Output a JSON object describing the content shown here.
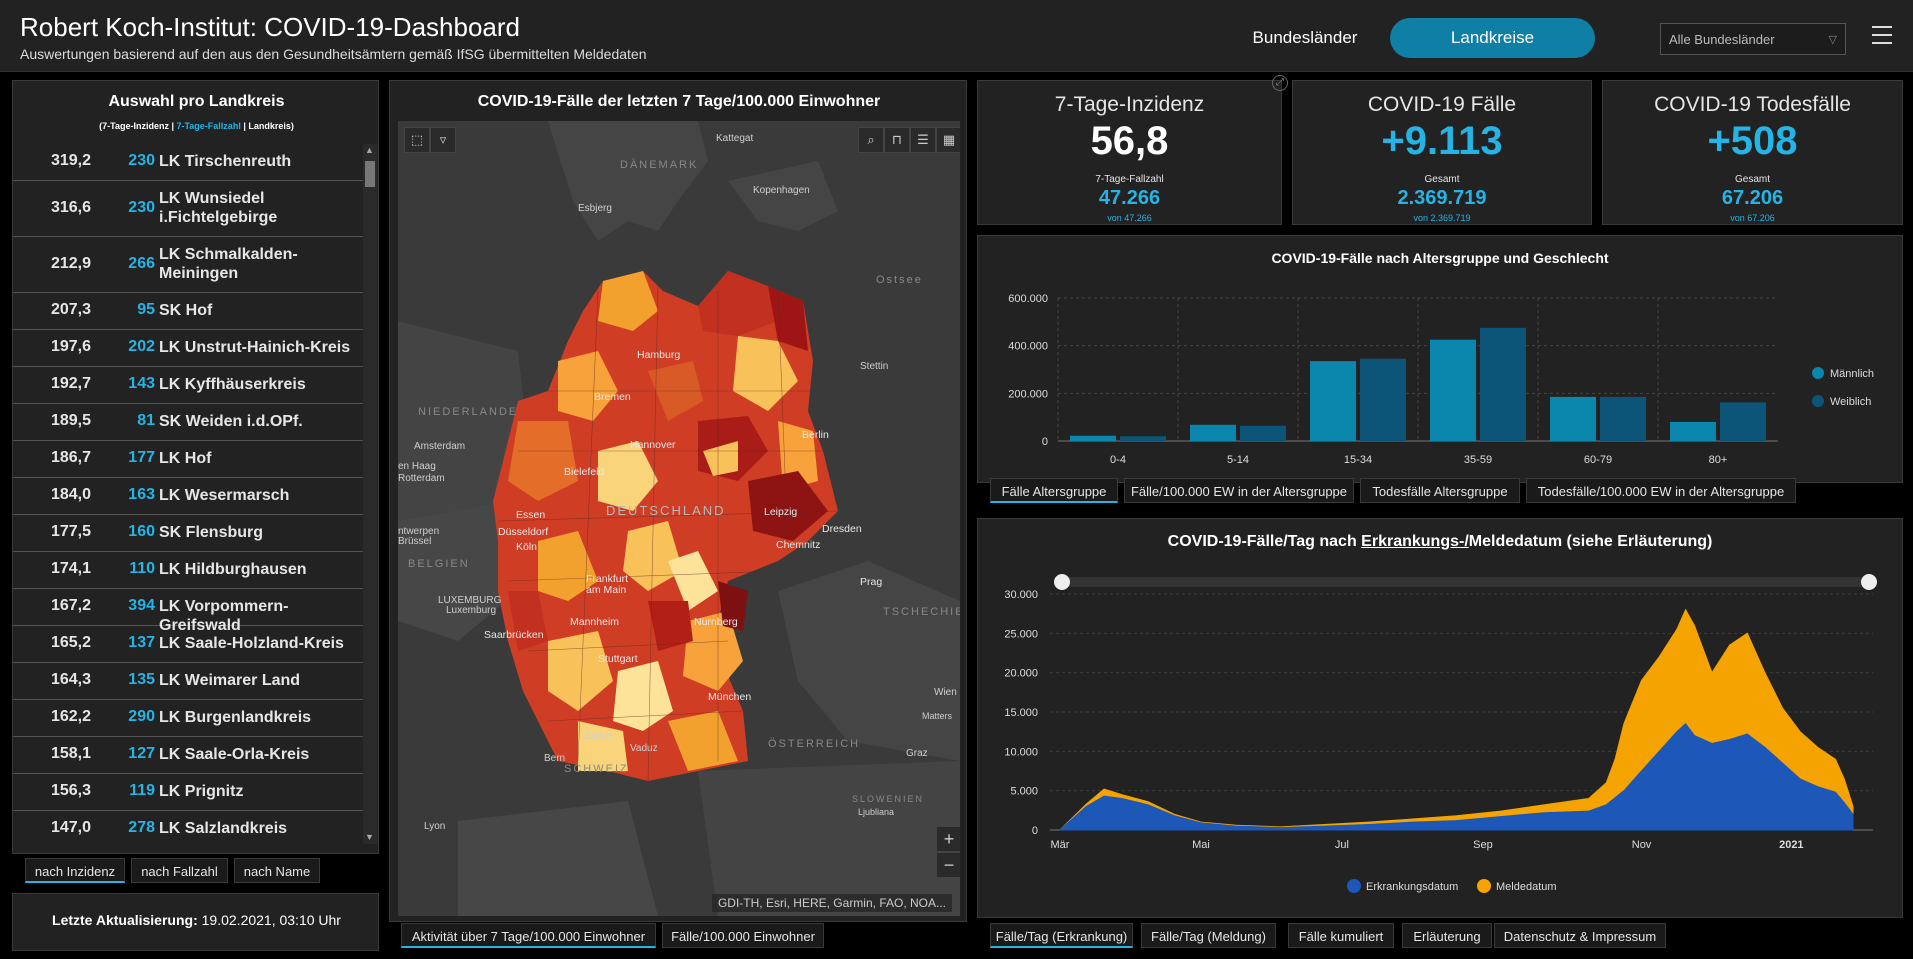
{
  "header": {
    "title": "Robert Koch-Institut: COVID-19-Dashboard",
    "subtitle": "Auswertungen basierend auf den aus den Gesundheitsämtern gemäß IfSG übermittelten Meldedaten",
    "btn_bundeslaender": "Bundesländer",
    "btn_landkreise": "Landkreise",
    "select_value": "Alle Bundesländer"
  },
  "left": {
    "title": "Auswahl pro Landkreis",
    "sub_a": "(7-Tage-Inzidenz | ",
    "sub_b": "7-Tage-Fallzahl",
    "sub_c": " | Landkreis)",
    "rows": [
      {
        "inz": "319,2",
        "fz": "230",
        "name": "LK Tirschenreuth"
      },
      {
        "inz": "316,6",
        "fz": "230",
        "name": "LK Wunsiedel i.Fichtelgebirge"
      },
      {
        "inz": "212,9",
        "fz": "266",
        "name": "LK Schmalkalden-Meiningen"
      },
      {
        "inz": "207,3",
        "fz": "95",
        "name": "SK Hof"
      },
      {
        "inz": "197,6",
        "fz": "202",
        "name": "LK Unstrut-Hainich-Kreis"
      },
      {
        "inz": "192,7",
        "fz": "143",
        "name": "LK Kyffhäuserkreis"
      },
      {
        "inz": "189,5",
        "fz": "81",
        "name": "SK Weiden i.d.OPf."
      },
      {
        "inz": "186,7",
        "fz": "177",
        "name": "LK Hof"
      },
      {
        "inz": "184,0",
        "fz": "163",
        "name": "LK Wesermarsch"
      },
      {
        "inz": "177,5",
        "fz": "160",
        "name": "SK Flensburg"
      },
      {
        "inz": "174,1",
        "fz": "110",
        "name": "LK Hildburghausen"
      },
      {
        "inz": "167,2",
        "fz": "394",
        "name": "LK Vorpommern-Greifswald"
      },
      {
        "inz": "165,2",
        "fz": "137",
        "name": "LK Saale-Holzland-Kreis"
      },
      {
        "inz": "164,3",
        "fz": "135",
        "name": "LK Weimarer Land"
      },
      {
        "inz": "162,2",
        "fz": "290",
        "name": "LK Burgenlandkreis"
      },
      {
        "inz": "158,1",
        "fz": "127",
        "name": "LK Saale-Orla-Kreis"
      },
      {
        "inz": "156,3",
        "fz": "119",
        "name": "LK Prignitz"
      },
      {
        "inz": "147,0",
        "fz": "278",
        "name": "LK Salzlandkreis"
      }
    ],
    "tabs": [
      "nach Inzidenz",
      "nach Fallzahl",
      "nach Name"
    ],
    "update_label": "Letzte Aktualisierung: ",
    "update_value": "19.02.2021, 03:10 Uhr"
  },
  "map": {
    "title": "COVID-19-Fälle der letzten 7 Tage/100.000 Einwohner",
    "attribution": "GDI-TH, Esri, HERE, Garmin, FAO, NOA...",
    "tabs": [
      "Aktivität über 7 Tage/100.000 Einwohner",
      "Fälle/100.000 Einwohner"
    ],
    "labels": {
      "daenemark": "DÄNEMARK",
      "kattegat": "Kattegat",
      "kopenhagen": "Kopenhagen",
      "esbjerg": "Esbjerg",
      "ostsee": "Ostsee",
      "hamburg": "Hamburg",
      "stettin": "Stettin",
      "bremen": "Bremen",
      "niederlande": "NIEDERLANDE",
      "amsterdam": "Amsterdam",
      "hannover": "Hannover",
      "berlin": "Berlin",
      "denhaag": "en Haag",
      "rotterdam": "Rotterdam",
      "bielefeld": "Bielefeld",
      "essen": "Essen",
      "duesseldorf": "Düsseldorf",
      "deutschland": "DEUTSCHLAND",
      "leipzig": "Leipzig",
      "dresden": "Dresden",
      "antwerpen": "ntwerpen",
      "koeln": "Köln",
      "chemnitz": "Chemnitz",
      "bruessel": "Brüssel",
      "belgien": "BELGIEN",
      "frankfurt1": "Frankfurt",
      "frankfurt2": "am Main",
      "prag": "Prag",
      "luxemburg1": "LUXEMBURG",
      "luxemburg2": "Luxemburg",
      "tschechien": "TSCHECHIE",
      "mannheim": "Mannheim",
      "nuernberg": "Nürnberg",
      "saarbruecken": "Saarbrücken",
      "stuttgart": "Stuttgart",
      "wien": "Wien",
      "muenchen": "München",
      "mattersb": "Matters",
      "zuerich": "Zürich",
      "vaduz": "Vaduz",
      "oesterreich": "ÖSTERREICH",
      "bern": "Bern",
      "schweiz": "SCHWEIZ",
      "graz": "Graz",
      "slowenien": "SLOWENIEN",
      "ljubljana": "Ljubliana",
      "lyon": "Lyon"
    }
  },
  "kpis": [
    {
      "label": "7-Tage-Inzidenz",
      "value": "56,8",
      "sub": "7-Tage-Fallzahl",
      "subval": "47.266",
      "of": "von 47.266",
      "color": "#ffffff"
    },
    {
      "label": "COVID-19 Fälle",
      "value": "+9.113",
      "sub": "Gesamt",
      "subval": "2.369.719",
      "of": "von 2.369.719",
      "color": "#25b4e6"
    },
    {
      "label": "COVID-19 Todesfälle",
      "value": "+508",
      "sub": "Gesamt",
      "subval": "67.206",
      "of": "von 67.206",
      "color": "#25b4e6"
    }
  ],
  "age_chart": {
    "title": "COVID-19-Fälle nach Altersgruppe und Geschlecht",
    "tabs": [
      "Fälle Altersgruppe",
      "Fälle/100.000 EW in der Altersgruppe",
      "Todesfälle Altersgruppe",
      "Todesfälle/100.000 EW in der Altersgruppe"
    ]
  },
  "day_chart": {
    "title_a": "COVID-19-Fälle/Tag nach ",
    "title_b": "Erkrankungs-/",
    "title_c": "Meldedatum (siehe Erläuterung)",
    "tabs": [
      "Fälle/Tag (Erkrankung)",
      "Fälle/Tag (Meldung)",
      "Fälle kumuliert",
      "Erläuterung",
      "Datenschutz & Impressum"
    ]
  },
  "chart_data": [
    {
      "type": "bar",
      "title": "COVID-19-Fälle nach Altersgruppe und Geschlecht",
      "categories": [
        "0-4",
        "5-14",
        "15-34",
        "35-59",
        "60-79",
        "80+"
      ],
      "series": [
        {
          "name": "Männlich",
          "values": [
            22000,
            68000,
            335000,
            425000,
            185000,
            80000
          ],
          "color": "#0b86ad"
        },
        {
          "name": "Weiblich",
          "values": [
            20000,
            64000,
            345000,
            475000,
            185000,
            162000
          ],
          "color": "#0c5478"
        }
      ],
      "yticks": [
        "0",
        "200.000",
        "400.000",
        "600.000"
      ],
      "ylim": [
        0,
        600000
      ],
      "legend": "right"
    },
    {
      "type": "area",
      "title": "COVID-19-Fälle/Tag nach Erkrankungs-/Meldedatum (siehe Erläuterung)",
      "x_labels": [
        "Mär",
        "Mai",
        "Jul",
        "Sep",
        "Nov",
        "2021"
      ],
      "yticks": [
        "0",
        "5.000",
        "10.000",
        "15.000",
        "20.000",
        "25.000",
        "30.000"
      ],
      "ylim": [
        0,
        30000
      ],
      "series": [
        {
          "name": "Erkrankungsdatum",
          "color": "#1d57b8",
          "points": [
            [
              0,
              0
            ],
            [
              3,
              3000
            ],
            [
              5,
              4300
            ],
            [
              7,
              4000
            ],
            [
              10,
              3200
            ],
            [
              13,
              1800
            ],
            [
              16,
              900
            ],
            [
              20,
              500
            ],
            [
              25,
              300
            ],
            [
              30,
              500
            ],
            [
              35,
              700
            ],
            [
              40,
              1000
            ],
            [
              45,
              1200
            ],
            [
              50,
              1700
            ],
            [
              55,
              2200
            ],
            [
              60,
              2400
            ],
            [
              62,
              3200
            ],
            [
              64,
              5000
            ],
            [
              66,
              7500
            ],
            [
              68,
              10000
            ],
            [
              70,
              12500
            ],
            [
              71,
              13500
            ],
            [
              72,
              12000
            ],
            [
              74,
              11000
            ],
            [
              76,
              11500
            ],
            [
              78,
              12200
            ],
            [
              80,
              10500
            ],
            [
              82,
              8500
            ],
            [
              84,
              6500
            ],
            [
              86,
              5500
            ],
            [
              88,
              4800
            ],
            [
              89,
              3500
            ],
            [
              90,
              2000
            ]
          ]
        },
        {
          "name": "Meldedatum",
          "color": "#f5a300",
          "points": [
            [
              0,
              0
            ],
            [
              3,
              3300
            ],
            [
              5,
              5200
            ],
            [
              7,
              4500
            ],
            [
              10,
              3600
            ],
            [
              13,
              2000
            ],
            [
              16,
              1000
            ],
            [
              20,
              600
            ],
            [
              25,
              400
            ],
            [
              30,
              700
            ],
            [
              35,
              1000
            ],
            [
              40,
              1400
            ],
            [
              45,
              1800
            ],
            [
              50,
              2400
            ],
            [
              55,
              3200
            ],
            [
              60,
              4000
            ],
            [
              62,
              6000
            ],
            [
              63,
              9000
            ],
            [
              64,
              13500
            ],
            [
              66,
              19000
            ],
            [
              68,
              22000
            ],
            [
              70,
              25500
            ],
            [
              71,
              28000
            ],
            [
              72,
              26000
            ],
            [
              74,
              20000
            ],
            [
              76,
              23500
            ],
            [
              78,
              25000
            ],
            [
              80,
              20000
            ],
            [
              82,
              15500
            ],
            [
              84,
              12500
            ],
            [
              86,
              10500
            ],
            [
              88,
              9000
            ],
            [
              89,
              6500
            ],
            [
              90,
              3000
            ]
          ]
        }
      ],
      "legend": "bottom"
    }
  ]
}
